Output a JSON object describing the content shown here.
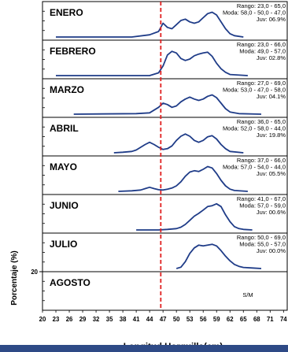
{
  "chart_data": {
    "type": "line",
    "xlabel": "Longitud Horquilla(cm)",
    "ylabel": "Porcentaje (%)",
    "ytick_label": "20",
    "xlim": [
      20,
      75
    ],
    "x_ticks": [
      "20",
      "23",
      "26",
      "29",
      "32",
      "35",
      "38",
      "41",
      "44",
      "47",
      "50",
      "53",
      "56",
      "59",
      "62",
      "65",
      "68",
      "71",
      "74"
    ],
    "reference_line_x": 46.5,
    "reference_line_color": "#e02020",
    "series_color": "#1f3c88",
    "panels": [
      {
        "label": "ENERO",
        "stats": [
          "Rango: 23,0 - 65,0",
          "Moda: 58,0 - 50,0 - 47,0",
          "Juv: 06.9%"
        ],
        "points": [
          [
            23,
            0
          ],
          [
            40,
            0
          ],
          [
            44,
            0.08
          ],
          [
            46,
            0.2
          ],
          [
            47,
            0.5
          ],
          [
            48,
            0.35
          ],
          [
            49,
            0.3
          ],
          [
            50,
            0.45
          ],
          [
            51,
            0.6
          ],
          [
            52,
            0.65
          ],
          [
            53,
            0.55
          ],
          [
            54,
            0.5
          ],
          [
            55,
            0.55
          ],
          [
            56,
            0.7
          ],
          [
            57,
            0.85
          ],
          [
            58,
            0.9
          ],
          [
            59,
            0.8
          ],
          [
            60,
            0.55
          ],
          [
            61,
            0.3
          ],
          [
            62,
            0.12
          ],
          [
            63,
            0.05
          ],
          [
            65,
            0
          ]
        ]
      },
      {
        "label": "FEBRERO",
        "stats": [
          "Rango: 23,0 - 66,0",
          "Moda: 49,0 - 57,0",
          "Juv: 02.8%"
        ],
        "points": [
          [
            23,
            0
          ],
          [
            44,
            0
          ],
          [
            46,
            0.1
          ],
          [
            47,
            0.35
          ],
          [
            48,
            0.75
          ],
          [
            49,
            0.88
          ],
          [
            50,
            0.82
          ],
          [
            51,
            0.62
          ],
          [
            52,
            0.55
          ],
          [
            53,
            0.6
          ],
          [
            54,
            0.72
          ],
          [
            55,
            0.78
          ],
          [
            56,
            0.82
          ],
          [
            57,
            0.85
          ],
          [
            58,
            0.7
          ],
          [
            59,
            0.45
          ],
          [
            60,
            0.25
          ],
          [
            61,
            0.12
          ],
          [
            62,
            0.04
          ],
          [
            66,
            0
          ]
        ]
      },
      {
        "label": "MARZO",
        "stats": [
          "Rango: 27,0 - 69,0",
          "Moda: 53,0 - 47,0 - 58,0",
          "Juv: 04.1%"
        ],
        "points": [
          [
            27,
            0
          ],
          [
            41,
            0.02
          ],
          [
            44,
            0.05
          ],
          [
            45,
            0.15
          ],
          [
            46,
            0.25
          ],
          [
            47,
            0.4
          ],
          [
            48,
            0.35
          ],
          [
            49,
            0.25
          ],
          [
            50,
            0.3
          ],
          [
            51,
            0.45
          ],
          [
            52,
            0.55
          ],
          [
            53,
            0.62
          ],
          [
            54,
            0.55
          ],
          [
            55,
            0.5
          ],
          [
            56,
            0.55
          ],
          [
            57,
            0.65
          ],
          [
            58,
            0.7
          ],
          [
            59,
            0.6
          ],
          [
            60,
            0.4
          ],
          [
            61,
            0.2
          ],
          [
            62,
            0.08
          ],
          [
            64,
            0.02
          ],
          [
            69,
            0
          ]
        ]
      },
      {
        "label": "ABRIL",
        "stats": [
          "Rango: 36,0 - 65,0",
          "Moda: 52,0 - 58,0 - 44,0",
          "Juv: 19.8%"
        ],
        "points": [
          [
            36,
            0
          ],
          [
            38,
            0.02
          ],
          [
            40,
            0.05
          ],
          [
            41,
            0.1
          ],
          [
            42,
            0.2
          ],
          [
            43,
            0.3
          ],
          [
            44,
            0.38
          ],
          [
            45,
            0.3
          ],
          [
            46,
            0.2
          ],
          [
            47,
            0.12
          ],
          [
            48,
            0.15
          ],
          [
            49,
            0.25
          ],
          [
            50,
            0.45
          ],
          [
            51,
            0.6
          ],
          [
            52,
            0.68
          ],
          [
            53,
            0.6
          ],
          [
            54,
            0.45
          ],
          [
            55,
            0.38
          ],
          [
            56,
            0.45
          ],
          [
            57,
            0.58
          ],
          [
            58,
            0.62
          ],
          [
            59,
            0.5
          ],
          [
            60,
            0.3
          ],
          [
            61,
            0.15
          ],
          [
            62,
            0.05
          ],
          [
            65,
            0
          ]
        ]
      },
      {
        "label": "MAYO",
        "stats": [
          "Rango: 37,0 - 66,0",
          "Moda: 57,0 - 54,0 - 44,0",
          "Juv: 05.5%"
        ],
        "points": [
          [
            37,
            0
          ],
          [
            40,
            0.02
          ],
          [
            42,
            0.05
          ],
          [
            43,
            0.1
          ],
          [
            44,
            0.15
          ],
          [
            45,
            0.1
          ],
          [
            46,
            0.06
          ],
          [
            47,
            0.05
          ],
          [
            48,
            0.08
          ],
          [
            49,
            0.12
          ],
          [
            50,
            0.2
          ],
          [
            51,
            0.35
          ],
          [
            52,
            0.55
          ],
          [
            53,
            0.7
          ],
          [
            54,
            0.75
          ],
          [
            55,
            0.72
          ],
          [
            56,
            0.8
          ],
          [
            57,
            0.9
          ],
          [
            58,
            0.85
          ],
          [
            59,
            0.65
          ],
          [
            60,
            0.4
          ],
          [
            61,
            0.2
          ],
          [
            62,
            0.08
          ],
          [
            63,
            0.03
          ],
          [
            66,
            0
          ]
        ]
      },
      {
        "label": "JUNIO",
        "stats": [
          "Rango: 41,0 - 67,0",
          "Moda: 57,0 - 59,0",
          "Juv: 00.6%"
        ],
        "points": [
          [
            41,
            0
          ],
          [
            46,
            0
          ],
          [
            48,
            0.02
          ],
          [
            50,
            0.05
          ],
          [
            51,
            0.1
          ],
          [
            52,
            0.2
          ],
          [
            53,
            0.35
          ],
          [
            54,
            0.5
          ],
          [
            55,
            0.6
          ],
          [
            56,
            0.72
          ],
          [
            57,
            0.85
          ],
          [
            58,
            0.88
          ],
          [
            59,
            0.95
          ],
          [
            60,
            0.85
          ],
          [
            61,
            0.55
          ],
          [
            62,
            0.3
          ],
          [
            63,
            0.12
          ],
          [
            64,
            0.05
          ],
          [
            65,
            0.02
          ],
          [
            67,
            0
          ]
        ]
      },
      {
        "label": "JULIO",
        "stats": [
          "Rango: 50,0 - 69,0",
          "Moda: 55,0 - 57,0",
          "Juv: 00.0%"
        ],
        "points": [
          [
            50,
            0
          ],
          [
            51,
            0.05
          ],
          [
            52,
            0.25
          ],
          [
            53,
            0.55
          ],
          [
            54,
            0.75
          ],
          [
            55,
            0.85
          ],
          [
            56,
            0.82
          ],
          [
            57,
            0.85
          ],
          [
            58,
            0.88
          ],
          [
            59,
            0.82
          ],
          [
            60,
            0.65
          ],
          [
            61,
            0.45
          ],
          [
            62,
            0.28
          ],
          [
            63,
            0.15
          ],
          [
            64,
            0.08
          ],
          [
            65,
            0.04
          ],
          [
            67,
            0.02
          ],
          [
            69,
            0
          ]
        ]
      },
      {
        "label": "AGOSTO",
        "stats": [
          "S/M"
        ],
        "points": []
      }
    ]
  }
}
